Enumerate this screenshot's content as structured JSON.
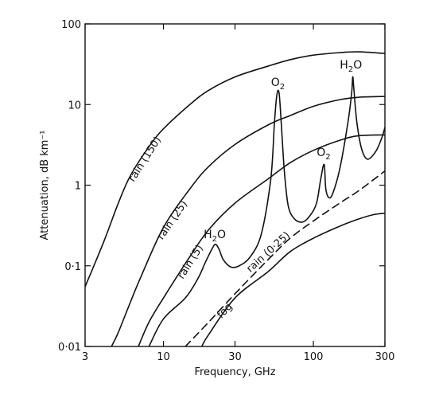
{
  "chart_data": {
    "type": "line",
    "title": "",
    "xlabel": "Frequency, GHz",
    "ylabel": "Attenuation, dB km⁻¹",
    "x_scale": "log",
    "y_scale": "log",
    "xlim": [
      3,
      300
    ],
    "ylim": [
      0.01,
      100
    ],
    "x_ticks": [
      {
        "value": 3,
        "label": "3"
      },
      {
        "value": 10,
        "label": "10"
      },
      {
        "value": 30,
        "label": "30"
      },
      {
        "value": 100,
        "label": "100"
      },
      {
        "value": 300,
        "label": "300"
      }
    ],
    "y_ticks": [
      {
        "value": 100,
        "label": "100"
      },
      {
        "value": 10,
        "label": "10"
      },
      {
        "value": 1,
        "label": "1"
      },
      {
        "value": 0.1,
        "label": "0·1"
      },
      {
        "value": 0.01,
        "label": "0·01"
      }
    ],
    "grid": false,
    "legend": "none",
    "series": [
      {
        "name": "rain (150)",
        "style": "solid",
        "points": [
          [
            3,
            0.055
          ],
          [
            4,
            0.2
          ],
          [
            5,
            0.6
          ],
          [
            6,
            1.3
          ],
          [
            8,
            3
          ],
          [
            10,
            5
          ],
          [
            15,
            10
          ],
          [
            20,
            15
          ],
          [
            30,
            22
          ],
          [
            50,
            30
          ],
          [
            70,
            36
          ],
          [
            100,
            41
          ],
          [
            150,
            44
          ],
          [
            200,
            45
          ],
          [
            300,
            43
          ]
        ]
      },
      {
        "name": "rain (25)",
        "style": "solid",
        "points": [
          [
            4.5,
            0.01
          ],
          [
            5,
            0.015
          ],
          [
            6,
            0.035
          ],
          [
            7,
            0.07
          ],
          [
            10,
            0.3
          ],
          [
            15,
            0.9
          ],
          [
            20,
            1.7
          ],
          [
            30,
            3.2
          ],
          [
            50,
            5.6
          ],
          [
            70,
            7.3
          ],
          [
            100,
            9.5
          ],
          [
            150,
            11.5
          ],
          [
            200,
            12.3
          ],
          [
            300,
            12.6
          ]
        ]
      },
      {
        "name": "rain (5)",
        "style": "solid",
        "points": [
          [
            6.8,
            0.01
          ],
          [
            8,
            0.02
          ],
          [
            10,
            0.04
          ],
          [
            15,
            0.13
          ],
          [
            20,
            0.28
          ],
          [
            30,
            0.6
          ],
          [
            50,
            1.2
          ],
          [
            70,
            1.9
          ],
          [
            100,
            2.7
          ],
          [
            150,
            3.6
          ],
          [
            200,
            4.1
          ],
          [
            300,
            4.2
          ]
        ]
      },
      {
        "name": "rain (0·25)",
        "style": "solid",
        "points": [
          [
            18,
            0.01
          ],
          [
            20,
            0.014
          ],
          [
            30,
            0.04
          ],
          [
            50,
            0.085
          ],
          [
            70,
            0.15
          ],
          [
            100,
            0.22
          ],
          [
            150,
            0.31
          ],
          [
            200,
            0.38
          ],
          [
            250,
            0.43
          ],
          [
            300,
            0.45
          ]
        ]
      },
      {
        "name": "fog",
        "style": "dashed",
        "points": [
          [
            14,
            0.01
          ],
          [
            20,
            0.02
          ],
          [
            30,
            0.045
          ],
          [
            50,
            0.12
          ],
          [
            70,
            0.22
          ],
          [
            100,
            0.36
          ],
          [
            150,
            0.6
          ],
          [
            200,
            0.85
          ],
          [
            300,
            1.5
          ]
        ]
      },
      {
        "name": "H2O and O2 absorption",
        "style": "solid",
        "points": [
          [
            8,
            0.01
          ],
          [
            10,
            0.022
          ],
          [
            14,
            0.04
          ],
          [
            17,
            0.07
          ],
          [
            19,
            0.11
          ],
          [
            21,
            0.16
          ],
          [
            22.2,
            0.185
          ],
          [
            23.5,
            0.16
          ],
          [
            25,
            0.12
          ],
          [
            28,
            0.097
          ],
          [
            32,
            0.1
          ],
          [
            38,
            0.13
          ],
          [
            45,
            0.25
          ],
          [
            52,
            1.2
          ],
          [
            55,
            6
          ],
          [
            57,
            13
          ],
          [
            59,
            14
          ],
          [
            61,
            6
          ],
          [
            64,
            1.5
          ],
          [
            68,
            0.55
          ],
          [
            75,
            0.38
          ],
          [
            85,
            0.35
          ],
          [
            95,
            0.42
          ],
          [
            105,
            0.6
          ],
          [
            112,
            1.2
          ],
          [
            118,
            1.8
          ],
          [
            121,
            0.9
          ],
          [
            127,
            0.7
          ],
          [
            135,
            0.8
          ],
          [
            150,
            1.6
          ],
          [
            170,
            6
          ],
          [
            180,
            14
          ],
          [
            183,
            22
          ],
          [
            186,
            16
          ],
          [
            195,
            6
          ],
          [
            210,
            2.8
          ],
          [
            230,
            2.1
          ],
          [
            260,
            2.6
          ],
          [
            285,
            3.8
          ],
          [
            300,
            5.2
          ]
        ]
      }
    ],
    "curve_labels": [
      {
        "series": "rain (150)",
        "text": "rain (150)"
      },
      {
        "series": "rain (25)",
        "text": "rain (25)"
      },
      {
        "series": "rain (5)",
        "text": "rain (5)"
      },
      {
        "series": "rain (0·25)",
        "text": "rain (0·25)"
      },
      {
        "series": "fog",
        "text": "fog"
      }
    ],
    "annotations": [
      {
        "text": "H2O",
        "base": "H",
        "sub": "2",
        "tail": "O",
        "x": 22,
        "y": 0.22
      },
      {
        "text": "O2",
        "base": "O",
        "sub": "2",
        "tail": "",
        "x": 58,
        "y": 17
      },
      {
        "text": "O2",
        "base": "O",
        "sub": "2",
        "tail": "",
        "x": 117,
        "y": 2.3
      },
      {
        "text": "H2O",
        "base": "H",
        "sub": "2",
        "tail": "O",
        "x": 178,
        "y": 28
      }
    ]
  }
}
